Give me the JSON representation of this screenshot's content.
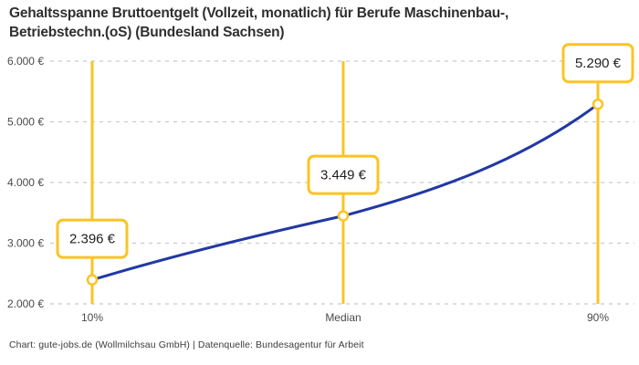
{
  "header": {
    "title_lines": [
      "Gehaltsspanne Bruttoentgelt (Vollzeit, monatlich) für Berufe Maschinenbau-,",
      "Betriebstechn.(oS) (Bundesland Sachsen)"
    ]
  },
  "footer": {
    "credit": "Chart: gute-jobs.de (Wollmilchsau GmbH) | Datenquelle: Bundesagentur für Arbeit"
  },
  "chart_data": {
    "type": "line",
    "title": "Gehaltsspanne Bruttoentgelt (Vollzeit, monatlich) für Berufe Maschinenbau-, Betriebstechn.(oS) (Bundesland Sachsen)",
    "categories": [
      "10%",
      "Median",
      "90%"
    ],
    "values": [
      2396,
      3449,
      5290
    ],
    "point_labels": [
      "2.396 €",
      "3.449 €",
      "5.290 €"
    ],
    "ylim": [
      2000,
      6000
    ],
    "y_ticks": [
      2000,
      3000,
      4000,
      5000,
      6000
    ],
    "y_tick_labels": [
      "2.000 €",
      "3.000 €",
      "4.000 €",
      "5.000 €",
      "6.000 €"
    ],
    "xlabel": "",
    "ylabel": "",
    "grid": "horizontal-dashed",
    "legend": "none",
    "source": "Chart: gute-jobs.de (Wollmilchsau GmbH) | Datenquelle: Bundesagentur für Arbeit",
    "colors": {
      "line": "#2139A3",
      "highlight": "#FBC424",
      "grid": "#CBCBCB",
      "axis_text": "#4A4A4A",
      "label_text": "#1F1F1F",
      "background": "#FFFFFF"
    }
  }
}
